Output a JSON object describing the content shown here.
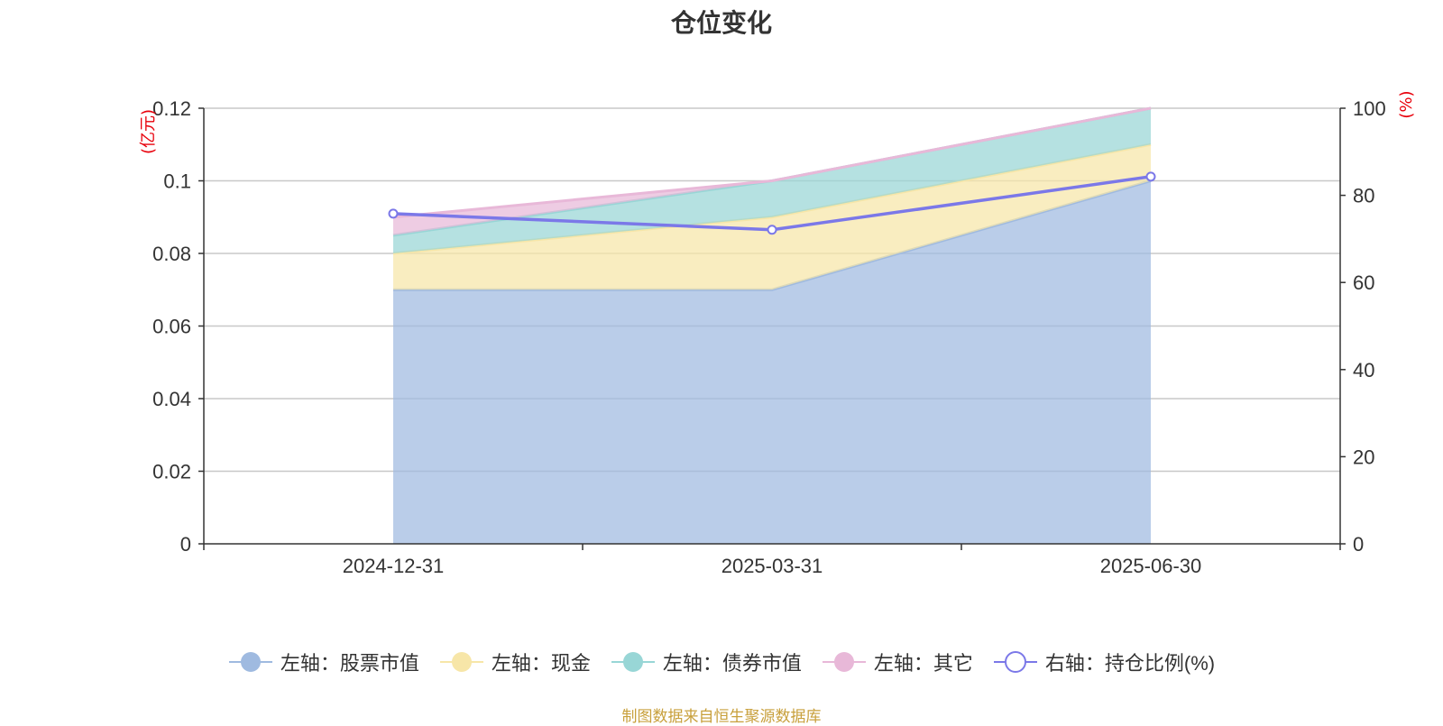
{
  "chart_data": {
    "type": "area",
    "title": "仓位变化",
    "categories": [
      "2024-12-31",
      "2025-03-31",
      "2025-06-30"
    ],
    "stacked": true,
    "left_axis": {
      "unit": "(亿元)",
      "ylim": [
        0,
        0.12
      ],
      "ticks": [
        "0",
        "0.02",
        "0.04",
        "0.06",
        "0.08",
        "0.1",
        "0.12"
      ],
      "tick_values": [
        0,
        0.02,
        0.04,
        0.06,
        0.08,
        0.1,
        0.12
      ]
    },
    "right_axis": {
      "unit": "(%)",
      "ylim": [
        0,
        100
      ],
      "ticks": [
        "0",
        "20",
        "40",
        "60",
        "80",
        "100"
      ],
      "tick_values": [
        0,
        20,
        40,
        60,
        80,
        100
      ]
    },
    "series": [
      {
        "name": "左轴：股票市值",
        "axis": "left",
        "kind": "area",
        "color": "#9fbae0",
        "values": [
          0.07,
          0.07,
          0.1
        ]
      },
      {
        "name": "左轴：现金",
        "axis": "left",
        "kind": "area",
        "color": "#f7e6a8",
        "values": [
          0.01,
          0.02,
          0.01
        ]
      },
      {
        "name": "左轴：债券市值",
        "axis": "left",
        "kind": "area",
        "color": "#98d6d6",
        "values": [
          0.005,
          0.01,
          0.01
        ]
      },
      {
        "name": "左轴：其它",
        "axis": "left",
        "kind": "area",
        "color": "#e8b8d8",
        "values": [
          0.005,
          0.0,
          0.0
        ]
      },
      {
        "name": "右轴：持仓比例(%)",
        "axis": "right",
        "kind": "line",
        "color": "#7b78e8",
        "values": [
          75.8,
          72.1,
          84.3
        ]
      }
    ],
    "grid": true,
    "legend_position": "bottom"
  },
  "source_note": "制图数据来自恒生聚源数据库"
}
